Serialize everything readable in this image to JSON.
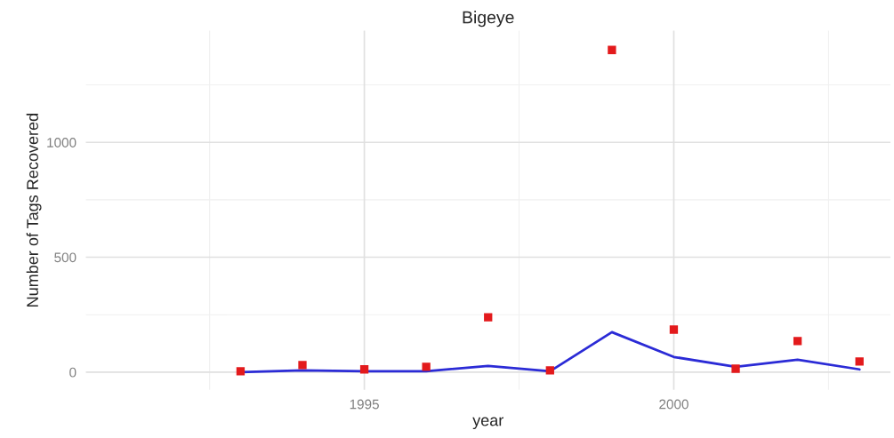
{
  "chart_data": {
    "type": "scatter",
    "title": "Bigeye",
    "xlabel": "year",
    "ylabel": "Number of Tags Recovered",
    "x": [
      1993,
      1994,
      1995,
      1996,
      1997,
      1998,
      1999,
      2000,
      2001,
      2002,
      2003
    ],
    "series": [
      {
        "color": "#e31a1c",
        "marker": "square",
        "values": [
          4,
          31,
          12,
          23,
          239,
          8,
          1402,
          185,
          15,
          135,
          46
        ]
      },
      {
        "type": "line",
        "color": "#2b2bd6",
        "marker": "none",
        "line_style": "solid",
        "values": [
          0,
          8,
          4,
          4,
          27,
          4,
          174,
          66,
          23,
          54,
          12
        ]
      }
    ],
    "xlim": [
      1990.5,
      2003.5
    ],
    "ylim": [
      -77,
      1486
    ],
    "xticks": [
      1995,
      2000
    ],
    "yticks": [
      0,
      500,
      1000
    ],
    "grid": true,
    "legend": false
  }
}
